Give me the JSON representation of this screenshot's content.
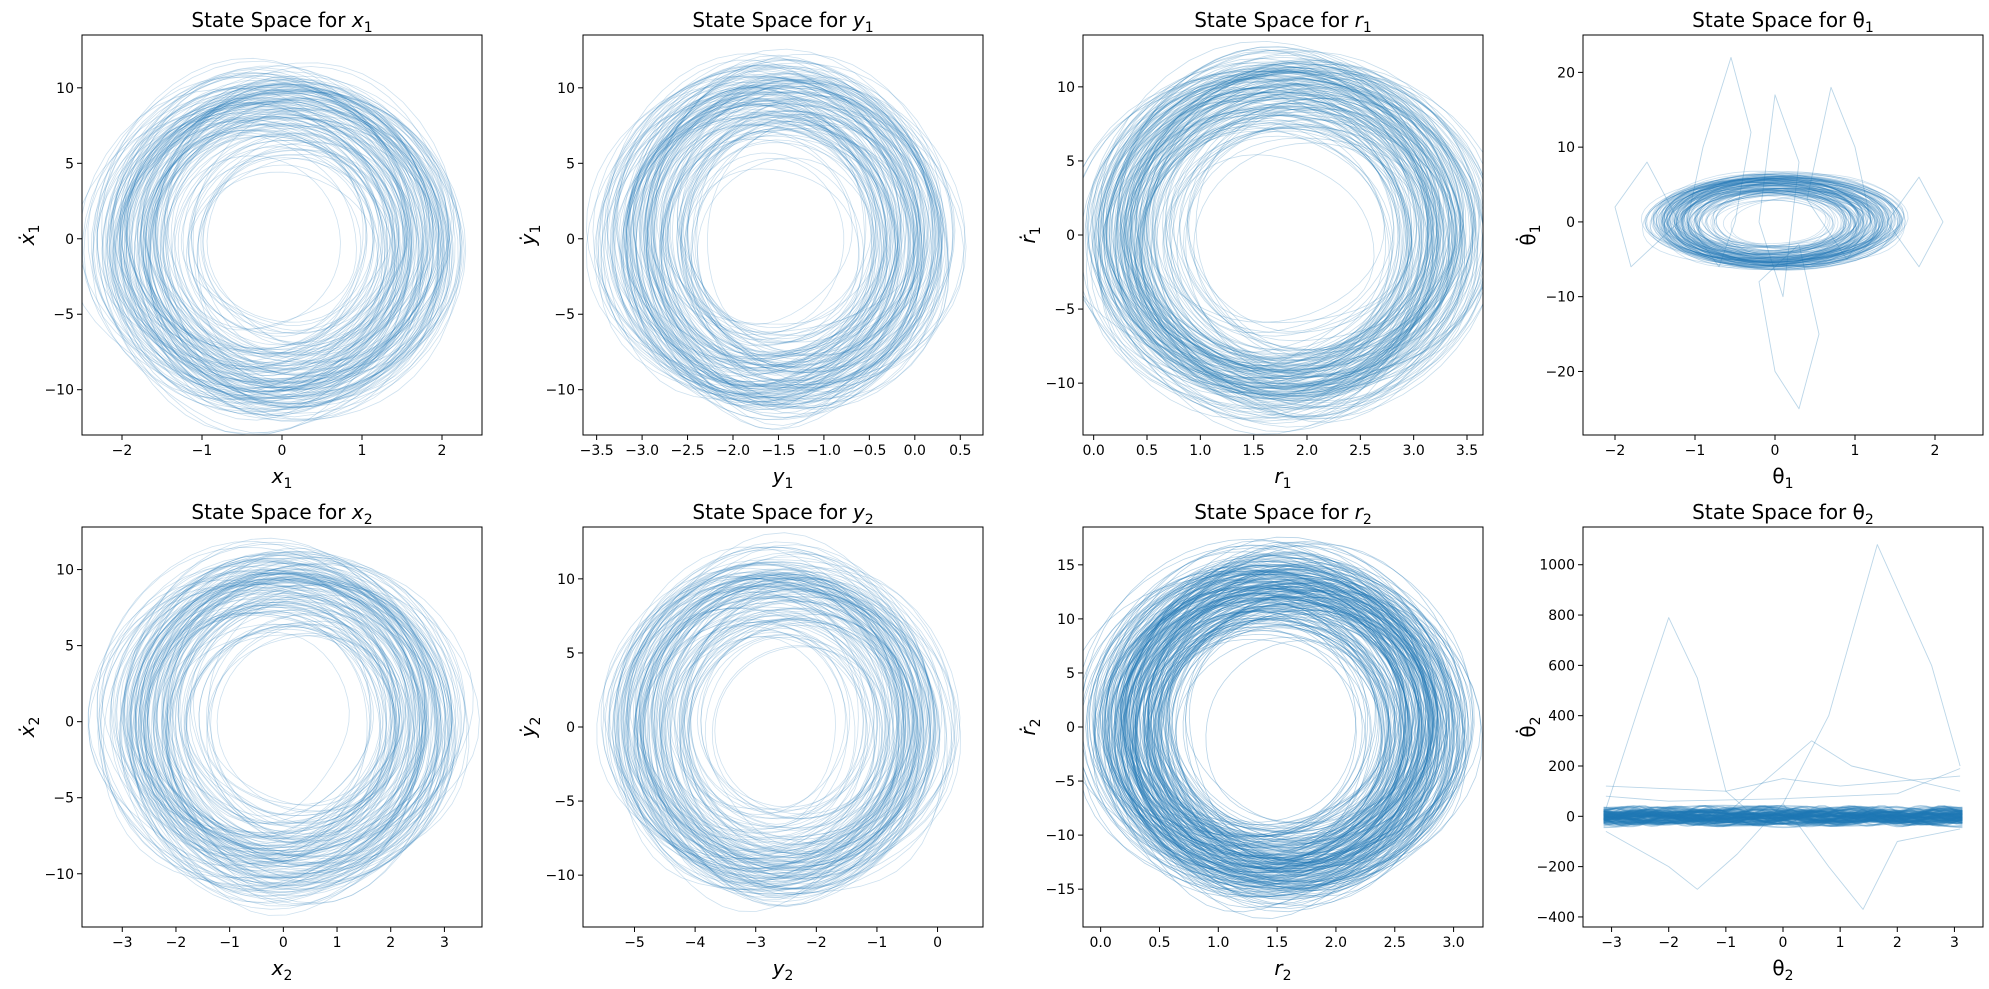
{
  "colors": {
    "series": "#1f77b4",
    "frame": "#000000"
  },
  "chart_data": [
    {
      "type": "line",
      "title_prefix": "State Space for ",
      "var": "x",
      "sub": "1",
      "greek": false,
      "xlabel": "x1",
      "ylabel": "ẋ1",
      "xlim": [
        -2.5,
        2.5
      ],
      "ylim": [
        -13.0,
        13.5
      ],
      "xticks": [
        "-2",
        "-1",
        "0",
        "1",
        "2"
      ],
      "yticks": [
        "-10",
        "-5",
        "0",
        "5",
        "10"
      ],
      "pattern": "ellipse",
      "cx": -0.05,
      "cy": -0.3,
      "rx": 1.9,
      "ry": 10.0,
      "orbit_count": 150,
      "line_opacity": 0.22
    },
    {
      "type": "line",
      "title_prefix": "State Space for ",
      "var": "y",
      "sub": "1",
      "greek": false,
      "xlabel": "y1",
      "ylabel": "ẏ1",
      "xlim": [
        -3.65,
        0.75
      ],
      "ylim": [
        -13.0,
        13.5
      ],
      "xticks": [
        "-3.5",
        "-3.0",
        "-2.5",
        "-2.0",
        "-1.5",
        "-1.0",
        "-0.5",
        "0.0",
        "0.5"
      ],
      "yticks": [
        "-10",
        "-5",
        "0",
        "5",
        "10"
      ],
      "pattern": "ellipse",
      "cx": -1.5,
      "cy": 0.0,
      "rx": 1.6,
      "ry": 10.2,
      "orbit_count": 150,
      "line_opacity": 0.22
    },
    {
      "type": "line",
      "title_prefix": "State Space for ",
      "var": "r",
      "sub": "1",
      "greek": false,
      "xlabel": "r1",
      "ylabel": "ṙ1",
      "xlim": [
        -0.1,
        3.65
      ],
      "ylim": [
        -13.5,
        13.5
      ],
      "xticks": [
        "0.0",
        "0.5",
        "1.0",
        "1.5",
        "2.0",
        "2.5",
        "3.0",
        "3.5"
      ],
      "yticks": [
        "-10",
        "-5",
        "0",
        "5",
        "10"
      ],
      "pattern": "ellipse",
      "cx": 1.8,
      "cy": 0.0,
      "rx": 1.55,
      "ry": 10.5,
      "orbit_count": 170,
      "line_opacity": 0.25
    },
    {
      "type": "line",
      "title_prefix": "State Space for ",
      "var": "θ",
      "sub": "1",
      "greek": true,
      "xlabel": "θ1",
      "ylabel": "θ̇1",
      "xlim": [
        -2.4,
        2.6
      ],
      "ylim": [
        -28.5,
        25.0
      ],
      "xticks": [
        "-2",
        "-1",
        "0",
        "1",
        "2"
      ],
      "yticks": [
        "-20",
        "-10",
        "0",
        "10",
        "20"
      ],
      "pattern": "ellipse",
      "cx": 0.0,
      "cy": 0.0,
      "rx": 1.3,
      "ry": 5.5,
      "orbit_count": 140,
      "line_opacity": 0.22,
      "outliers": [
        [
          [
            -0.5,
            0
          ],
          [
            -0.3,
            12
          ],
          [
            -0.55,
            22
          ],
          [
            -0.9,
            10
          ],
          [
            -1.1,
            0
          ],
          [
            -0.7,
            -6
          ],
          [
            -0.5,
            0
          ]
        ],
        [
          [
            0.3,
            -3
          ],
          [
            0.55,
            -15
          ],
          [
            0.3,
            -25
          ],
          [
            0.0,
            -20
          ],
          [
            -0.2,
            -8
          ],
          [
            0.3,
            -3
          ]
        ],
        [
          [
            0.4,
            3
          ],
          [
            0.7,
            18
          ],
          [
            1.0,
            10
          ],
          [
            1.2,
            0
          ],
          [
            0.9,
            -5
          ],
          [
            0.4,
            3
          ]
        ],
        [
          [
            -1.2,
            0
          ],
          [
            -1.6,
            8
          ],
          [
            -2.0,
            2
          ],
          [
            -1.8,
            -6
          ],
          [
            -1.2,
            0
          ]
        ],
        [
          [
            1.4,
            0
          ],
          [
            1.8,
            6
          ],
          [
            2.1,
            0
          ],
          [
            1.8,
            -6
          ],
          [
            1.4,
            0
          ]
        ],
        [
          [
            -0.2,
            0
          ],
          [
            0.0,
            17
          ],
          [
            0.3,
            8
          ],
          [
            0.1,
            -10
          ],
          [
            -0.2,
            0
          ]
        ]
      ]
    },
    {
      "type": "line",
      "title_prefix": "State Space for ",
      "var": "x",
      "sub": "2",
      "greek": false,
      "xlabel": "x2",
      "ylabel": "ẋ2",
      "xlim": [
        -3.75,
        3.7
      ],
      "ylim": [
        -13.5,
        12.8
      ],
      "xticks": [
        "-3",
        "-2",
        "-1",
        "0",
        "1",
        "2",
        "3"
      ],
      "yticks": [
        "-10",
        "-5",
        "0",
        "5",
        "10"
      ],
      "pattern": "ellipse",
      "cx": 0.0,
      "cy": 0.0,
      "rx": 2.8,
      "ry": 10.0,
      "orbit_count": 140,
      "line_opacity": 0.22
    },
    {
      "type": "line",
      "title_prefix": "State Space for ",
      "var": "y",
      "sub": "2",
      "greek": false,
      "xlabel": "y2",
      "ylabel": "ẏ2",
      "xlim": [
        -5.85,
        0.75
      ],
      "ylim": [
        -13.5,
        13.5
      ],
      "xticks": [
        "-5",
        "-4",
        "-3",
        "-2",
        "-1",
        "0"
      ],
      "yticks": [
        "-10",
        "-5",
        "0",
        "5",
        "10"
      ],
      "pattern": "ellipse",
      "cx": -2.6,
      "cy": 0.0,
      "rx": 2.3,
      "ry": 10.0,
      "orbit_count": 140,
      "line_opacity": 0.22
    },
    {
      "type": "line",
      "title_prefix": "State Space for ",
      "var": "r",
      "sub": "2",
      "greek": false,
      "xlabel": "r2",
      "ylabel": "ṙ2",
      "xlim": [
        -0.15,
        3.25
      ],
      "ylim": [
        -18.5,
        18.5
      ],
      "xticks": [
        "0.0",
        "0.5",
        "1.0",
        "1.5",
        "2.0",
        "2.5",
        "3.0"
      ],
      "yticks": [
        "-15",
        "-10",
        "-5",
        "0",
        "5",
        "10",
        "15"
      ],
      "pattern": "ellipse",
      "cx": 1.5,
      "cy": 0.0,
      "rx": 1.35,
      "ry": 14.0,
      "orbit_count": 220,
      "line_opacity": 0.32
    },
    {
      "type": "line",
      "title_prefix": "State Space for ",
      "var": "θ",
      "sub": "2",
      "greek": true,
      "xlabel": "θ2",
      "ylabel": "θ̇2",
      "xlim": [
        -3.5,
        3.5
      ],
      "ylim": [
        -440,
        1150
      ],
      "xticks": [
        "-3",
        "-2",
        "-1",
        "0",
        "1",
        "2",
        "3"
      ],
      "yticks": [
        "-400",
        "-200",
        "0",
        "200",
        "400",
        "600",
        "800",
        "1000"
      ],
      "pattern": "band",
      "xmin": -3.14,
      "xmax": 3.14,
      "band_amp": 18,
      "orbit_count": 90,
      "line_opacity": 0.35,
      "outliers": [
        [
          [
            -3.1,
            30
          ],
          [
            -2.5,
            450
          ],
          [
            -2.0,
            790
          ],
          [
            -1.5,
            550
          ],
          [
            -1.0,
            100
          ],
          [
            -0.5,
            0
          ]
        ],
        [
          [
            0.0,
            50
          ],
          [
            0.8,
            400
          ],
          [
            1.65,
            1080
          ],
          [
            2.6,
            600
          ],
          [
            3.1,
            200
          ]
        ],
        [
          [
            -3.1,
            -60
          ],
          [
            -2.0,
            -200
          ],
          [
            -1.5,
            -290
          ],
          [
            -0.8,
            -150
          ],
          [
            0.0,
            50
          ],
          [
            0.8,
            -200
          ],
          [
            1.4,
            -370
          ],
          [
            2.0,
            -100
          ],
          [
            3.1,
            -50
          ]
        ],
        [
          [
            -3.1,
            120
          ],
          [
            -1.0,
            100
          ],
          [
            0.0,
            150
          ],
          [
            1.0,
            120
          ],
          [
            3.1,
            160
          ]
        ],
        [
          [
            -3.1,
            -20
          ],
          [
            -1.2,
            -30
          ],
          [
            0.5,
            300
          ],
          [
            1.2,
            200
          ],
          [
            3.1,
            100
          ]
        ],
        [
          [
            -3.1,
            80
          ],
          [
            -2.0,
            60
          ],
          [
            0.0,
            70
          ],
          [
            2.0,
            90
          ],
          [
            3.1,
            190
          ]
        ]
      ]
    }
  ]
}
